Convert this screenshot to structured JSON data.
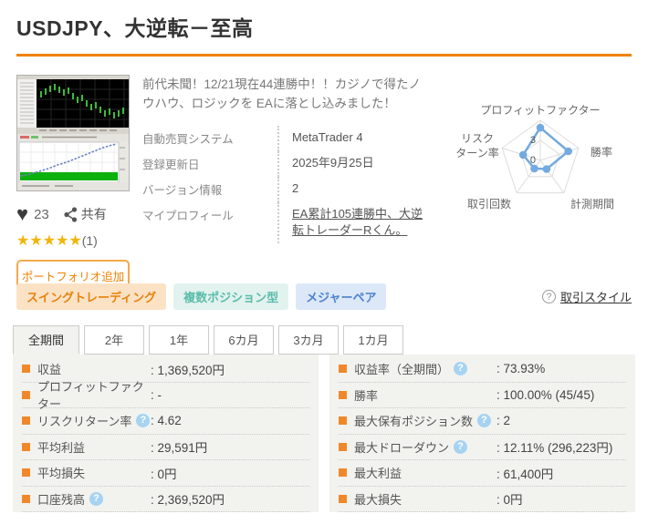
{
  "page": {
    "title": "USDJPY、大逆転－至高"
  },
  "product": {
    "description": "前代未聞！12/21現在44連勝中！！カジノで得たノウハウ、ロジックを EAに落とし込みました！",
    "likes": "23",
    "share_label": "共有",
    "stars": "★★★★★",
    "review_count": "(1)",
    "portfolio_button": "ポートフォリオ追加",
    "info": [
      {
        "label": "自動売買システム",
        "value": "MetaTrader 4",
        "link": false
      },
      {
        "label": "登録更新日",
        "value": "2025年9月25日",
        "link": false
      },
      {
        "label": "バージョン情報",
        "value": "2",
        "link": false
      },
      {
        "label": "マイプロフィール",
        "value": "EA累計105連勝中、大逆転トレーダーRくん。",
        "link": true
      }
    ]
  },
  "chart_data": {
    "type": "radar",
    "title": "",
    "axes": [
      "プロフィットファクター",
      "勝率",
      "計測期間",
      "取引回数",
      "リスクリターン率"
    ],
    "axis_lines": [
      [
        "プロフィットファクター"
      ],
      [
        "勝率"
      ],
      [
        "計測期間"
      ],
      [
        "取引回数"
      ],
      [
        "リスク",
        "ターン率"
      ]
    ],
    "values": [
      4.9,
      4.4,
      1.6,
      1.5,
      2.7
    ],
    "scale_max": 6,
    "ticks": [
      {
        "label": "0",
        "value": 0
      },
      {
        "label": "3",
        "value": 3
      }
    ],
    "line_color": "#74aadf",
    "grid_color": "#ddd",
    "legend": "none"
  },
  "tags": [
    {
      "label": "スイングトレーディング",
      "bg": "#fbe2c5",
      "color": "#e8820c"
    },
    {
      "label": "複数ポジション型",
      "bg": "#e2f3ef",
      "color": "#5cbcab"
    },
    {
      "label": "メジャーペア",
      "bg": "#dce8f8",
      "color": "#4d82cc"
    }
  ],
  "trade_style": {
    "label": "取引スタイル"
  },
  "tabs": {
    "active": 0,
    "items": [
      "全期間",
      "2年",
      "1年",
      "6カ月",
      "3カ月",
      "1カ月"
    ]
  },
  "stats": {
    "left": [
      {
        "label": "収益",
        "value": ": 1,369,520円",
        "help": false
      },
      {
        "label": "プロフィットファクター",
        "value": ": -",
        "help": false
      },
      {
        "label": "リスクリターン率",
        "value": ": 4.62",
        "help": true
      },
      {
        "label": "平均利益",
        "value": ": 29,591円",
        "help": false
      },
      {
        "label": "平均損失",
        "value": ": 0円",
        "help": false
      },
      {
        "label": "口座残高",
        "value": ": 2,369,520円",
        "help": true
      }
    ],
    "right": [
      {
        "label": "収益率（全期間）",
        "value": ": 73.93%",
        "help": true
      },
      {
        "label": "勝率",
        "value": ": 100.00% (45/45)",
        "help": false
      },
      {
        "label": "最大保有ポジション数",
        "value": ": 2",
        "help": true
      },
      {
        "label": "最大ドローダウン",
        "value": ": 12.11% (296,223円)",
        "help": true
      },
      {
        "label": "最大利益",
        "value": ": 61,400円",
        "help": false
      },
      {
        "label": "最大損失",
        "value": ": 0円",
        "help": false
      }
    ]
  },
  "icons": {
    "help_glyph": "?"
  },
  "colors": {
    "accent_orange": "#f08300",
    "bullet_orange": "#f0882a",
    "panel_bg": "#f2f2ef",
    "star_gold": "#f2b50a",
    "help_blue": "#a6d3f1",
    "radar_blue": "#74aadf"
  }
}
